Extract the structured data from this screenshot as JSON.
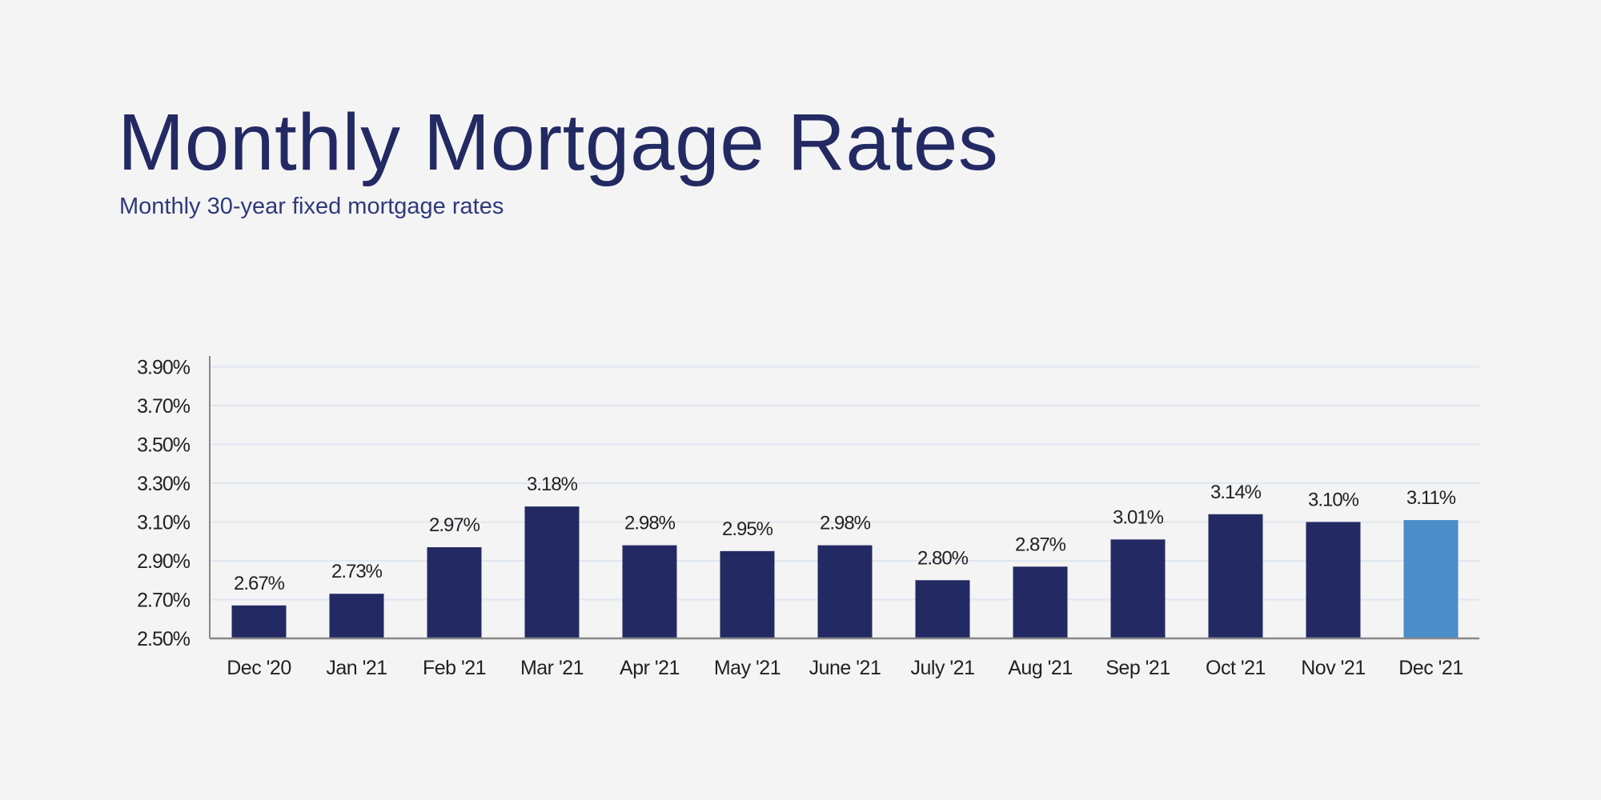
{
  "title": "Monthly Mortgage Rates",
  "subtitle": "Monthly 30-year fixed mortgage rates",
  "colors": {
    "bar": "#232a63",
    "highlight": "#4a8dc9",
    "grid": "#dfe6f0",
    "axis": "#888888",
    "title": "#232a63"
  },
  "chart_data": {
    "type": "bar",
    "title": "Monthly Mortgage Rates",
    "subtitle": "Monthly 30-year fixed mortgage rates",
    "xlabel": "",
    "ylabel": "",
    "categories": [
      "Dec '20",
      "Jan '21",
      "Feb '21",
      "Mar '21",
      "Apr '21",
      "May '21",
      "June '21",
      "July '21",
      "Aug '21",
      "Sep '21",
      "Oct '21",
      "Nov '21",
      "Dec '21"
    ],
    "values": [
      2.67,
      2.73,
      2.97,
      3.18,
      2.98,
      2.95,
      2.98,
      2.8,
      2.87,
      3.01,
      3.14,
      3.1,
      3.11
    ],
    "data_labels": [
      "2.67%",
      "2.73%",
      "2.97%",
      "3.18%",
      "2.98%",
      "2.95%",
      "2.98%",
      "2.80%",
      "2.87%",
      "3.01%",
      "3.14%",
      "3.10%",
      "3.11%"
    ],
    "highlighted_category": "Dec '21",
    "ylim": [
      2.5,
      3.9
    ],
    "yticks": [
      2.5,
      2.7,
      2.9,
      3.1,
      3.3,
      3.5,
      3.7,
      3.9
    ],
    "ytick_labels": [
      "2.50%",
      "2.70%",
      "2.90%",
      "3.10%",
      "3.30%",
      "3.50%",
      "3.70%",
      "3.90%"
    ],
    "grid": true,
    "legend": "none"
  }
}
